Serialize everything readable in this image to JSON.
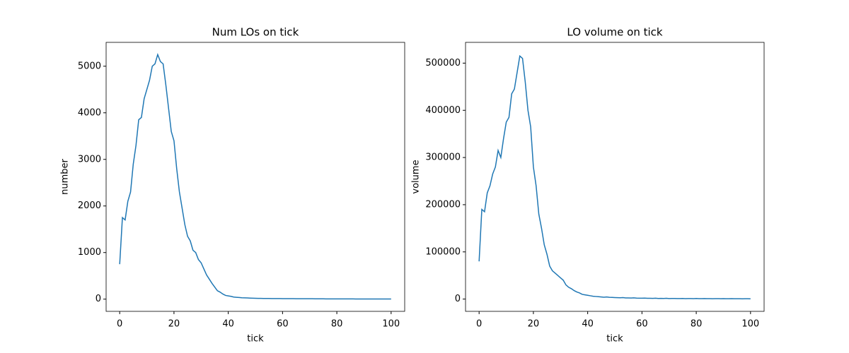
{
  "chart_data": [
    {
      "type": "line",
      "title": "Num LOs on tick",
      "x_label": "tick",
      "y_label": "number",
      "x": [
        0,
        1,
        2,
        3,
        4,
        5,
        6,
        7,
        8,
        9,
        10,
        11,
        12,
        13,
        14,
        15,
        16,
        17,
        18,
        19,
        20,
        21,
        22,
        23,
        24,
        25,
        26,
        27,
        28,
        29,
        30,
        31,
        32,
        33,
        34,
        35,
        36,
        37,
        38,
        39,
        40,
        41,
        42,
        43,
        44,
        45,
        46,
        47,
        48,
        49,
        50,
        51,
        52,
        53,
        54,
        55,
        56,
        57,
        58,
        59,
        60,
        61,
        62,
        63,
        64,
        65,
        66,
        67,
        68,
        69,
        70,
        71,
        72,
        73,
        74,
        75,
        76,
        77,
        78,
        79,
        80,
        81,
        82,
        83,
        84,
        85,
        86,
        87,
        88,
        89,
        90,
        91,
        92,
        93,
        94,
        95,
        96,
        97,
        98,
        99,
        100
      ],
      "series": [
        {
          "color": "#1f77b4",
          "values": [
            750,
            1750,
            1700,
            2100,
            2300,
            2900,
            3300,
            3850,
            3900,
            4300,
            4500,
            4700,
            5000,
            5050,
            5250,
            5100,
            5050,
            4600,
            4100,
            3600,
            3400,
            2800,
            2300,
            1950,
            1600,
            1350,
            1250,
            1050,
            1000,
            850,
            780,
            650,
            520,
            430,
            340,
            260,
            180,
            150,
            110,
            80,
            70,
            60,
            45,
            40,
            35,
            30,
            28,
            25,
            22,
            20,
            18,
            17,
            16,
            15,
            15,
            14,
            13,
            13,
            12,
            12,
            11,
            11,
            10,
            10,
            10,
            9,
            9,
            9,
            8,
            8,
            8,
            8,
            7,
            7,
            7,
            7,
            6,
            6,
            6,
            6,
            6,
            5,
            5,
            5,
            5,
            5,
            5,
            4,
            4,
            4,
            4,
            4,
            4,
            4,
            3,
            3,
            3,
            3,
            3,
            3,
            3
          ]
        }
      ],
      "xlim": [
        -5,
        105
      ],
      "xticks": [
        0,
        20,
        40,
        60,
        80,
        100
      ],
      "ylim": [
        -262,
        5512
      ],
      "yticks": [
        0,
        1000,
        2000,
        3000,
        4000,
        5000
      ]
    },
    {
      "type": "line",
      "title": "LO volume on tick",
      "x_label": "tick",
      "y_label": "volume",
      "x": [
        0,
        1,
        2,
        3,
        4,
        5,
        6,
        7,
        8,
        9,
        10,
        11,
        12,
        13,
        14,
        15,
        16,
        17,
        18,
        19,
        20,
        21,
        22,
        23,
        24,
        25,
        26,
        27,
        28,
        29,
        30,
        31,
        32,
        33,
        34,
        35,
        36,
        37,
        38,
        39,
        40,
        41,
        42,
        43,
        44,
        45,
        46,
        47,
        48,
        49,
        50,
        51,
        52,
        53,
        54,
        55,
        56,
        57,
        58,
        59,
        60,
        61,
        62,
        63,
        64,
        65,
        66,
        67,
        68,
        69,
        70,
        71,
        72,
        73,
        74,
        75,
        76,
        77,
        78,
        79,
        80,
        81,
        82,
        83,
        84,
        85,
        86,
        87,
        88,
        89,
        90,
        91,
        92,
        93,
        94,
        95,
        96,
        97,
        98,
        99,
        100
      ],
      "series": [
        {
          "color": "#1f77b4",
          "values": [
            80000,
            190000,
            185000,
            225000,
            240000,
            265000,
            280000,
            315000,
            300000,
            340000,
            375000,
            385000,
            435000,
            445000,
            480000,
            515000,
            510000,
            460000,
            400000,
            365000,
            280000,
            240000,
            180000,
            150000,
            115000,
            95000,
            70000,
            60000,
            55000,
            50000,
            45000,
            40000,
            30000,
            25000,
            22000,
            18000,
            15000,
            13000,
            10000,
            9000,
            8000,
            7000,
            6000,
            5500,
            5000,
            4500,
            4000,
            4500,
            3800,
            3500,
            3200,
            3000,
            2800,
            3100,
            2500,
            2400,
            2200,
            2600,
            2000,
            1900,
            1800,
            2100,
            1700,
            1600,
            1500,
            1800,
            1400,
            1500,
            1300,
            1600,
            1200,
            1300,
            1400,
            1100,
            1200,
            1300,
            1000,
            1200,
            1100,
            1000,
            1300,
            900,
            1000,
            1100,
            900,
            1000,
            800,
            900,
            1000,
            800,
            900,
            700,
            800,
            900,
            700,
            800,
            700,
            600,
            800,
            700,
            600
          ]
        }
      ],
      "xlim": [
        -5,
        105
      ],
      "xticks": [
        0,
        20,
        40,
        60,
        80,
        100
      ],
      "ylim": [
        -26000,
        544000
      ],
      "yticks": [
        0,
        100000,
        200000,
        300000,
        400000,
        500000
      ]
    }
  ]
}
